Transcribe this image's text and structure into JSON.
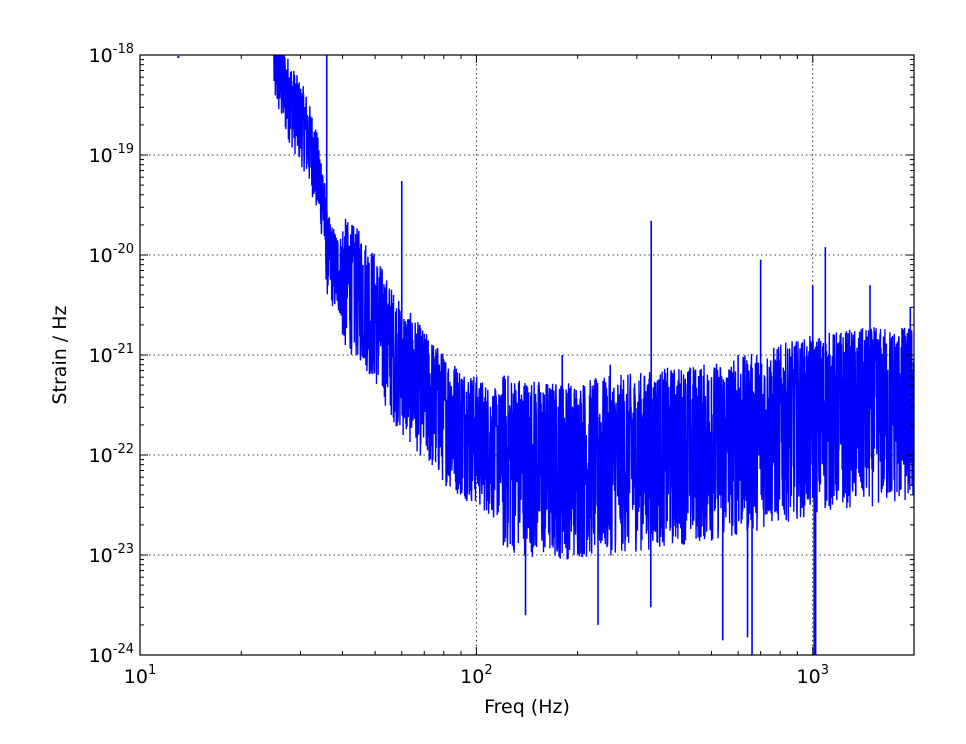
{
  "chart_data": {
    "type": "line",
    "xlabel": "Freq (Hz)",
    "ylabel": "Strain / Hz",
    "xscale": "log",
    "yscale": "log",
    "xlim": [
      10,
      2000
    ],
    "ylim": [
      1e-24,
      1e-18
    ],
    "grid": true,
    "x_ticks": [
      {
        "base": "10",
        "exp": "1",
        "value": 10
      },
      {
        "base": "10",
        "exp": "2",
        "value": 100
      },
      {
        "base": "10",
        "exp": "3",
        "value": 1000
      }
    ],
    "y_ticks": [
      {
        "base": "10",
        "exp": "-18",
        "value": 1e-18
      },
      {
        "base": "10",
        "exp": "-19",
        "value": 1e-19
      },
      {
        "base": "10",
        "exp": "-20",
        "value": 1e-20
      },
      {
        "base": "10",
        "exp": "-21",
        "value": 1e-21
      },
      {
        "base": "10",
        "exp": "-22",
        "value": 1e-22
      },
      {
        "base": "10",
        "exp": "-23",
        "value": 1e-23
      },
      {
        "base": "10",
        "exp": "-24",
        "value": 1e-24
      }
    ],
    "series": [
      {
        "color": "#0000ff",
        "x": [
          13,
          20,
          25,
          27,
          29,
          31,
          33,
          35,
          36,
          38,
          40,
          45,
          50,
          55,
          60,
          65,
          70,
          80,
          90,
          100,
          110,
          120,
          140,
          160,
          200,
          250,
          300,
          350,
          400,
          500,
          600,
          700,
          800,
          1000,
          1200,
          1500,
          1800,
          2000
        ],
        "y": [
          1e-18,
          1e-18,
          1e-18,
          5e-19,
          3e-19,
          2e-19,
          1e-19,
          4e-20,
          1.2e-20,
          8e-21,
          7e-21,
          5e-21,
          3e-21,
          1.5e-21,
          9e-22,
          7e-22,
          5e-22,
          3e-22,
          2.2e-22,
          1.8e-22,
          1.4e-22,
          1.2e-22,
          1.1e-22,
          1e-22,
          1e-22,
          1.1e-22,
          1.2e-22,
          1.3e-22,
          1.4e-22,
          1.5e-22,
          1.7e-22,
          2e-22,
          2.3e-22,
          2.8e-22,
          3.2e-22,
          3.4e-22,
          3.5e-22,
          3.5e-22
        ],
        "spikes": [
          {
            "x": 35.9,
            "y": 1e-18
          },
          {
            "x": 60,
            "y": 5.5e-20
          },
          {
            "x": 120,
            "y": 6e-22
          },
          {
            "x": 180,
            "y": 1e-21
          },
          {
            "x": 250,
            "y": 8e-22
          },
          {
            "x": 331,
            "y": 2.2e-20
          },
          {
            "x": 500,
            "y": 6e-22
          },
          {
            "x": 600,
            "y": 1e-21
          },
          {
            "x": 700,
            "y": 9e-21
          },
          {
            "x": 1000,
            "y": 5e-21
          },
          {
            "x": 1090,
            "y": 1.2e-20
          },
          {
            "x": 1480,
            "y": 5e-21
          },
          {
            "x": 1950,
            "y": 3e-21
          }
        ],
        "dips": [
          {
            "x": 640,
            "y": 1.5e-24
          },
          {
            "x": 660,
            "y": 1e-24
          },
          {
            "x": 1010,
            "y": 1e-24
          },
          {
            "x": 1020,
            "y": 1e-24
          },
          {
            "x": 540,
            "y": 1.4e-24
          },
          {
            "x": 330,
            "y": 3e-24
          },
          {
            "x": 140,
            "y": 2.5e-24
          },
          {
            "x": 230,
            "y": 2e-24
          }
        ]
      }
    ]
  }
}
